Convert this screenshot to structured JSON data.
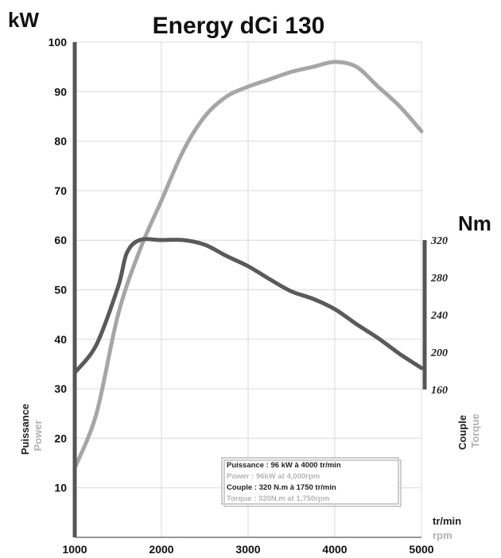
{
  "chart_data": {
    "type": "line",
    "title": "Energy dCi 130",
    "y_left_unit": "kW",
    "y_right_unit": "Nm",
    "x_unit_primary": "tr/min",
    "x_unit_secondary": "rpm",
    "xlim": [
      1000,
      5000
    ],
    "ylim_left": [
      0,
      100
    ],
    "ylim_right": [
      160,
      320
    ],
    "grid": true,
    "x_ticks": [
      1000,
      2000,
      3000,
      4000,
      5000
    ],
    "x_tick_labels": [
      "1000",
      "2000",
      "3000",
      "4000",
      "5000"
    ],
    "y_left_ticks": [
      10,
      20,
      30,
      40,
      50,
      60,
      70,
      80,
      90,
      100
    ],
    "y_right_ticks": [
      160,
      200,
      240,
      280,
      320
    ],
    "left_axis_label_primary": "Puissance",
    "left_axis_label_secondary": "Power",
    "right_axis_label_primary": "Couple",
    "right_axis_label_secondary": "Torque",
    "series": [
      {
        "color": "#a6a6a6",
        "axis": "left",
        "x": [
          1000,
          1250,
          1500,
          1750,
          2000,
          2250,
          2500,
          2750,
          3000,
          3250,
          3500,
          3750,
          4000,
          4250,
          4500,
          4750,
          5000
        ],
        "values": [
          14,
          25,
          45,
          58,
          68,
          78,
          85,
          89,
          91,
          92.5,
          94,
          95,
          96,
          95,
          91,
          87,
          82
        ]
      },
      {
        "color": "#5a5a5a",
        "axis": "right",
        "x": [
          1000,
          1250,
          1500,
          1600,
          1750,
          2000,
          2250,
          2500,
          2750,
          3000,
          3250,
          3500,
          3750,
          4000,
          4250,
          4500,
          4750,
          5000
        ],
        "values": [
          178,
          208,
          270,
          306,
          320,
          320,
          320,
          315,
          303,
          292,
          278,
          265,
          257,
          246,
          230,
          215,
          198,
          183
        ]
      }
    ],
    "legend": {
      "placement": "bottom-right",
      "lines": [
        {
          "text": "Puissance : 96 kW à 4000 tr/min",
          "color": "#222222"
        },
        {
          "text": "Power : 96kW at 4,000rpm",
          "color": "#b5b5b5"
        },
        {
          "text": "Couple : 320 N.m à 1750 tr/min",
          "color": "#222222"
        },
        {
          "text": "Torque : 320N.m at 1,750rpm",
          "color": "#b5b5b5"
        }
      ]
    }
  }
}
